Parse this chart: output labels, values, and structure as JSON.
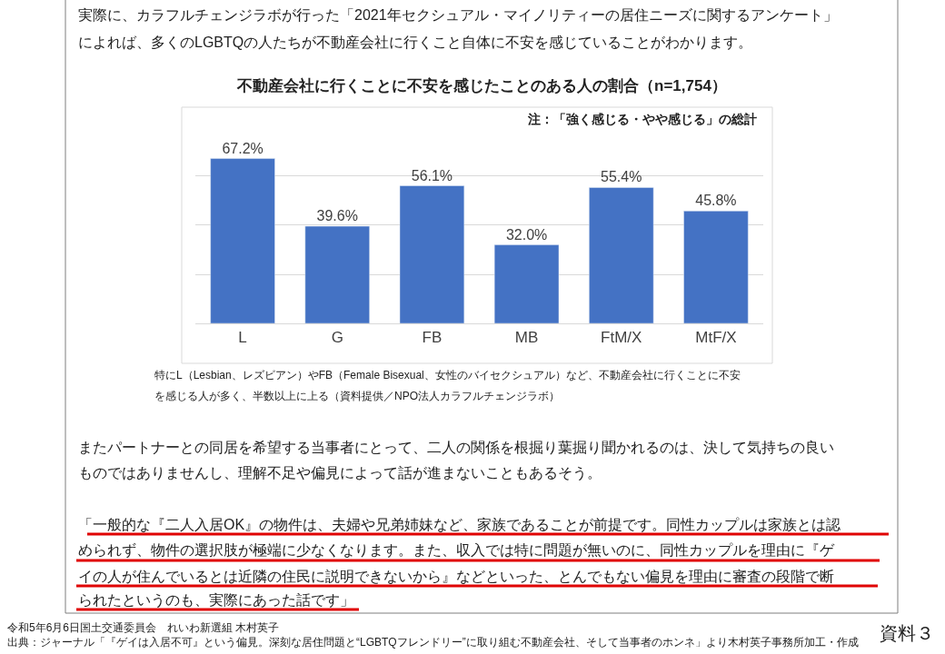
{
  "chart_data": {
    "type": "bar",
    "title": "不動産会社に行くことに不安を感じたことのある人の割合（n=1,754）",
    "categories": [
      "L",
      "G",
      "FB",
      "MB",
      "FtM/X",
      "MtF/X"
    ],
    "values": [
      67.2,
      39.6,
      56.1,
      32.0,
      55.4,
      45.8
    ],
    "value_labels": [
      "67.2%",
      "39.6%",
      "56.1%",
      "32.0%",
      "55.4%",
      "45.8%"
    ],
    "color": "#4472c4",
    "tick_labels": "x",
    "grid": "y",
    "legend": false,
    "annotations": [
      "実際に、カラフルチェンジラボが行った「2021年セクシュアル・マイノリティーの居住ニーズに関するアンケート」",
      "によれば、多くのLGBTQの人たちが不動産会社に行くこと自体に不安を感じていることがわかります。",
      "注：「強く感じる・やや感じる」の総計",
      "特にL（Lesbian、レズビアン）やFB（Female Bisexual、女性のバイセクシュアル）など、不動産会社に行くことに不安",
      "を感じる人が多く、半数以上に上る（資料提供／NPO法人カラフルチェンジラボ）",
      "またパートナーとの同居を希望する当事者にとって、二人の関係を根掘り葉掘り聞かれるのは、決して気持ちの良い",
      "ものではありませんし、理解不足や偏見によって話が進まないこともあるそう。",
      "「一般的な『二人入居OK』の物件は、夫婦や兄弟姉妹など、家族であることが前提です。同性カップルは家族とは認",
      "められず、物件の選択肢が極端に少なくなります。また、収入では特に問題が無いのに、同性カップルを理由に『ゲ",
      "イの人が住んでいるとは近隣の住民に説明できないから』などといった、とんでもない偏見を理由に審査の段階で断",
      "られたというのも、実際にあった話です」",
      "令和5年6月6日国土交通委員会　れいわ新選組 木村英子",
      "出典：ジャーナル「『ゲイは入居不可』という偏見。深刻な居住問題と“LGBTQフレンドリー”に取り組む不動産会社、そして当事者のホンネ」より木村英子事務所加工・作成",
      "資料３"
    ]
  }
}
